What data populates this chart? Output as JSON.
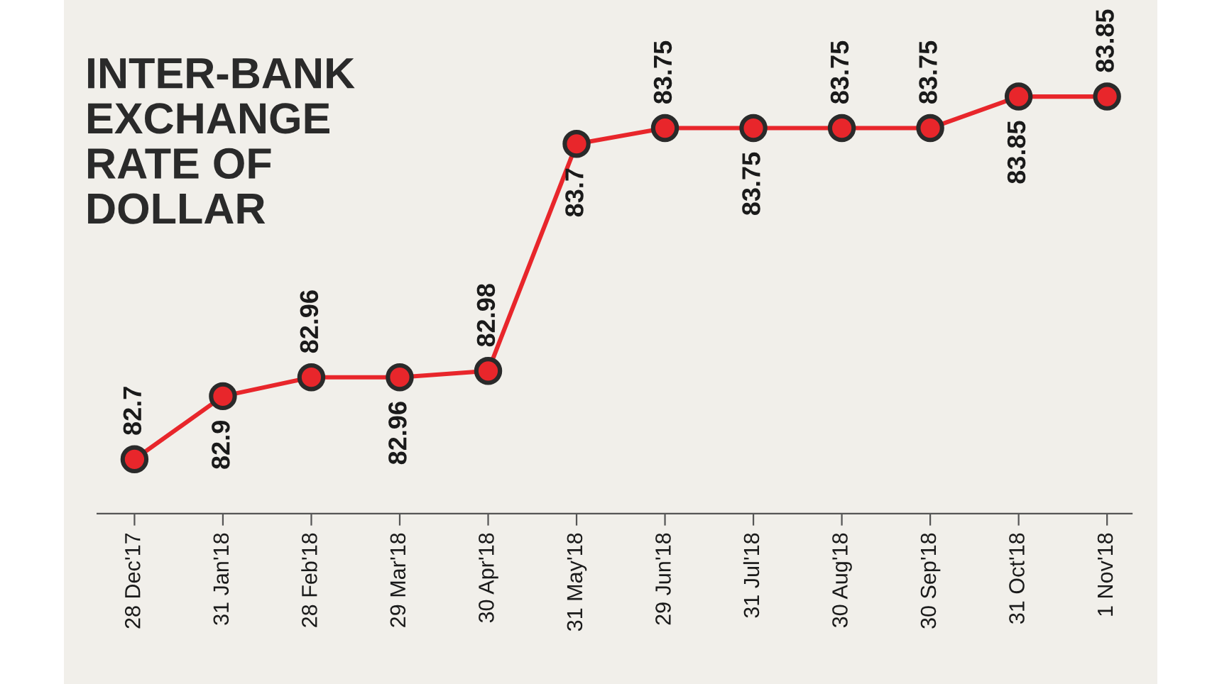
{
  "chart_data": {
    "type": "line",
    "title": "INTER-BANK\nEXCHANGE\nRATE OF\nDOLLAR",
    "categories": [
      "28 Dec'17",
      "31 Jan'18",
      "28 Feb'18",
      "29 Mar'18",
      "30 Apr'18",
      "31 May'18",
      "29 Jun'18",
      "31 Jul'18",
      "30 Aug'18",
      "30 Sep'18",
      "31 Oct'18",
      "1 Nov'18"
    ],
    "series": [
      {
        "color": "#e8262b",
        "values": [
          82.7,
          82.9,
          82.96,
          82.96,
          82.98,
          83.7,
          83.75,
          83.75,
          83.75,
          83.75,
          83.85,
          83.85
        ]
      }
    ],
    "data_labels": true,
    "marker": "circle",
    "line_style": "solid",
    "grid": false,
    "legend": false
  }
}
